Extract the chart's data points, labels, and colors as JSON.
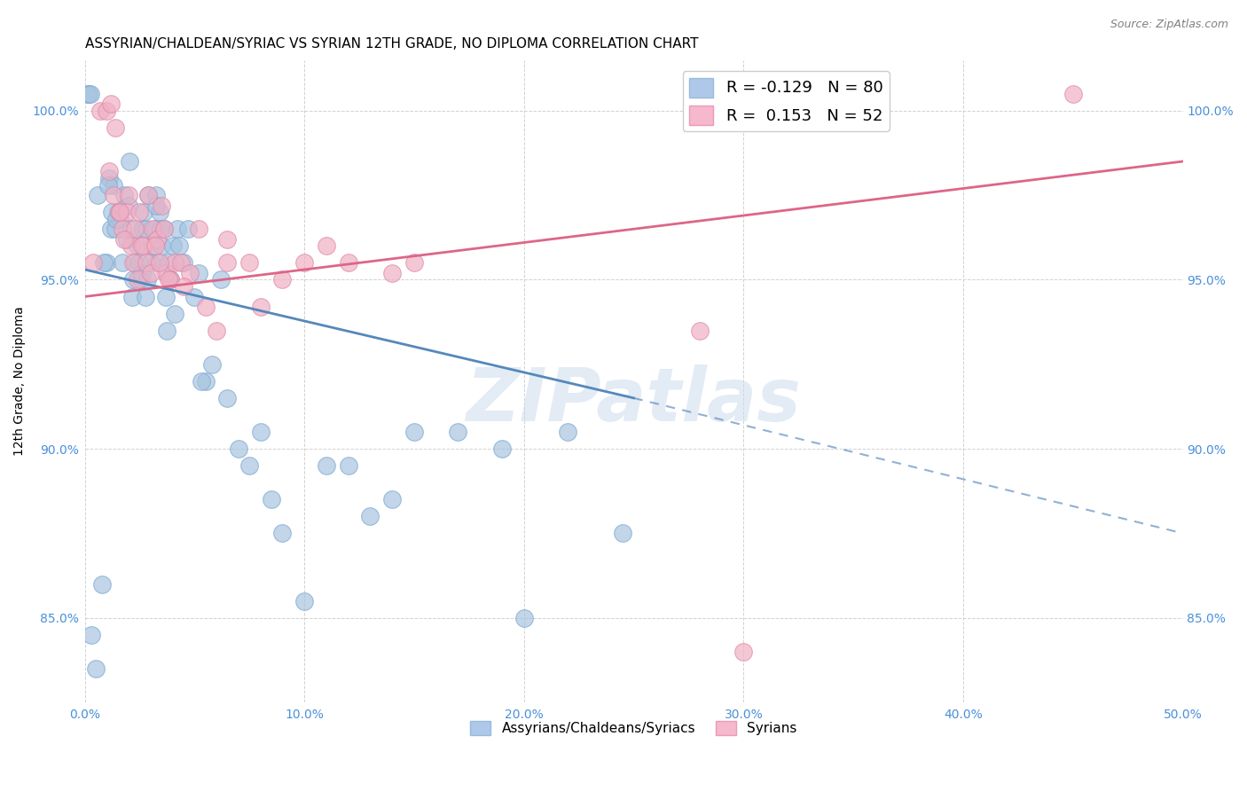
{
  "title": "ASSYRIAN/CHALDEAN/SYRIAC VS SYRIAN 12TH GRADE, NO DIPLOMA CORRELATION CHART",
  "source": "Source: ZipAtlas.com",
  "xlabel": "",
  "ylabel": "12th Grade, No Diploma",
  "xlim": [
    0.0,
    50.0
  ],
  "ylim": [
    82.5,
    101.5
  ],
  "xticklabels": [
    "0.0%",
    "10.0%",
    "20.0%",
    "30.0%",
    "40.0%",
    "50.0%"
  ],
  "xticks": [
    0.0,
    10.0,
    20.0,
    30.0,
    40.0,
    50.0
  ],
  "yticks": [
    85.0,
    90.0,
    95.0,
    100.0
  ],
  "yticklabels": [
    "85.0%",
    "90.0%",
    "95.0%",
    "100.0%"
  ],
  "blue_R": -0.129,
  "blue_N": 80,
  "pink_R": 0.153,
  "pink_N": 52,
  "blue_color": "#a8c4e0",
  "pink_color": "#f0b0c4",
  "blue_line_color": "#5588bb",
  "pink_line_color": "#dd6688",
  "blue_scatter_x": [
    0.3,
    0.5,
    0.8,
    1.0,
    1.1,
    1.2,
    1.3,
    1.4,
    1.5,
    1.6,
    1.7,
    1.8,
    1.9,
    2.0,
    2.1,
    2.15,
    2.2,
    2.3,
    2.4,
    2.5,
    2.55,
    2.6,
    2.65,
    2.7,
    2.75,
    2.8,
    2.85,
    2.9,
    3.0,
    3.1,
    3.2,
    3.25,
    3.3,
    3.4,
    3.45,
    3.5,
    3.6,
    3.7,
    3.75,
    3.8,
    3.9,
    4.0,
    4.1,
    4.2,
    4.3,
    4.5,
    4.7,
    5.0,
    5.2,
    5.5,
    5.8,
    6.2,
    6.5,
    7.0,
    7.5,
    8.0,
    8.5,
    9.0,
    10.0,
    11.0,
    12.0,
    13.0,
    14.0,
    15.0,
    17.0,
    19.0,
    20.0,
    22.0,
    24.5,
    0.15,
    0.2,
    0.25,
    0.6,
    0.85,
    1.05,
    1.25,
    1.45,
    2.05,
    3.25,
    5.3
  ],
  "blue_scatter_y": [
    84.5,
    83.5,
    86.0,
    95.5,
    98.0,
    96.5,
    97.8,
    96.5,
    97.0,
    96.8,
    95.5,
    97.5,
    96.2,
    97.2,
    96.5,
    94.5,
    95.0,
    95.5,
    96.0,
    95.5,
    95.0,
    95.2,
    96.5,
    97.0,
    94.5,
    96.5,
    95.0,
    97.5,
    95.5,
    96.0,
    96.5,
    97.5,
    95.5,
    97.0,
    96.5,
    96.0,
    96.5,
    94.5,
    93.5,
    95.5,
    95.0,
    96.0,
    94.0,
    96.5,
    96.0,
    95.5,
    96.5,
    94.5,
    95.2,
    92.0,
    92.5,
    95.0,
    91.5,
    90.0,
    89.5,
    90.5,
    88.5,
    87.5,
    85.5,
    89.5,
    89.5,
    88.0,
    88.5,
    90.5,
    90.5,
    90.0,
    85.0,
    90.5,
    87.5,
    100.5,
    100.5,
    100.5,
    97.5,
    95.5,
    97.8,
    97.0,
    96.8,
    98.5,
    97.2,
    92.0
  ],
  "pink_scatter_x": [
    0.4,
    0.7,
    1.0,
    1.2,
    1.4,
    1.55,
    1.7,
    1.9,
    2.1,
    2.3,
    2.5,
    2.7,
    2.9,
    3.1,
    3.3,
    3.5,
    3.7,
    3.9,
    4.1,
    4.4,
    4.8,
    5.2,
    6.0,
    6.5,
    7.5,
    8.0,
    9.0,
    10.0,
    11.0,
    12.0,
    14.0,
    15.0,
    1.1,
    1.3,
    1.6,
    1.8,
    2.0,
    2.2,
    2.4,
    2.6,
    2.8,
    3.0,
    3.2,
    3.4,
    3.6,
    3.8,
    4.5,
    5.5,
    28.0,
    45.0,
    30.0,
    6.5
  ],
  "pink_scatter_y": [
    95.5,
    100.0,
    100.0,
    100.2,
    99.5,
    97.0,
    96.5,
    97.0,
    96.0,
    96.5,
    97.0,
    96.0,
    97.5,
    96.5,
    96.2,
    97.2,
    95.2,
    95.0,
    95.5,
    95.5,
    95.2,
    96.5,
    93.5,
    96.2,
    95.5,
    94.2,
    95.0,
    95.5,
    96.0,
    95.5,
    95.2,
    95.5,
    98.2,
    97.5,
    97.0,
    96.2,
    97.5,
    95.5,
    95.0,
    96.0,
    95.5,
    95.2,
    96.0,
    95.5,
    96.5,
    95.0,
    94.8,
    94.2,
    93.5,
    100.5,
    84.0,
    95.5
  ],
  "blue_trend_solid_x0": 0.0,
  "blue_trend_solid_x1": 25.0,
  "blue_trend_solid_y0": 95.3,
  "blue_trend_solid_y1": 91.5,
  "blue_trend_dash_x0": 25.0,
  "blue_trend_dash_x1": 50.0,
  "blue_trend_dash_y0": 91.5,
  "blue_trend_dash_y1": 87.5,
  "pink_trend_x0": 0.0,
  "pink_trend_x1": 50.0,
  "pink_trend_y0": 94.5,
  "pink_trend_y1": 98.5,
  "legend_blue_color": "#adc8e8",
  "legend_pink_color": "#f5b8cc",
  "background_color": "#ffffff",
  "grid_color": "#cccccc",
  "title_fontsize": 11,
  "label_fontsize": 10,
  "tick_fontsize": 10,
  "source_fontsize": 9,
  "watermark_text": "ZIPatlas",
  "watermark_color": "#ccdcee",
  "watermark_fontsize": 60
}
